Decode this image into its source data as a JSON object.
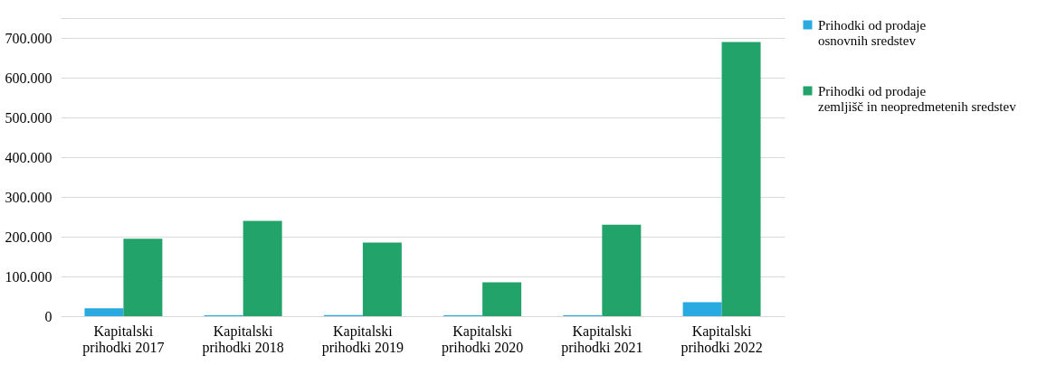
{
  "chart_data": {
    "type": "bar",
    "categories": [
      "Kapitalski prihodki 2017",
      "Kapitalski prihodki 2018",
      "Kapitalski prihodki 2019",
      "Kapitalski prihodki 2020",
      "Kapitalski prihodki 2021",
      "Kapitalski prihodki 2022"
    ],
    "series": [
      {
        "name": "Prihodki od prodaje osnovnih sredstev",
        "color": "#29abe2",
        "values": [
          20000,
          2000,
          3000,
          2000,
          2000,
          35000
        ]
      },
      {
        "name": "Prihodki od prodaje zemljišč in neopredmetenih sredstev",
        "color": "#22a36a",
        "values": [
          195000,
          240000,
          185000,
          85000,
          230000,
          690000
        ]
      }
    ],
    "ylim": [
      0,
      750000
    ],
    "yticks": [
      {
        "value": 0,
        "label": "0"
      },
      {
        "value": 100000,
        "label": "100.000"
      },
      {
        "value": 200000,
        "label": "200.000"
      },
      {
        "value": 300000,
        "label": "300.000"
      },
      {
        "value": 400000,
        "label": "400.000"
      },
      {
        "value": 500000,
        "label": "500.000"
      },
      {
        "value": 600000,
        "label": "600.000"
      },
      {
        "value": 700000,
        "label": "700.000"
      },
      {
        "value": 750000,
        "label": null
      }
    ],
    "grid": "y",
    "legend": "right"
  }
}
